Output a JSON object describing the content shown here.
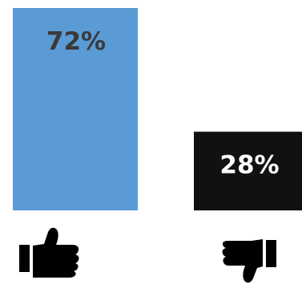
{
  "chart_data": {
    "type": "bar",
    "categories": [
      "thumbs-up",
      "thumbs-down"
    ],
    "values": [
      72,
      28
    ],
    "value_labels": [
      "72%",
      "28%"
    ],
    "ylim": [
      0,
      72
    ],
    "grid": false,
    "colors": {
      "thumbs_up_bar": "#5b9bd5",
      "thumbs_down_bar": "#111111",
      "thumbs_up_label": "#3a3a3a",
      "thumbs_down_label": "#ffffff",
      "icon": "#000000"
    },
    "category_icons": [
      "thumbs-up-icon",
      "thumbs-down-icon"
    ]
  }
}
